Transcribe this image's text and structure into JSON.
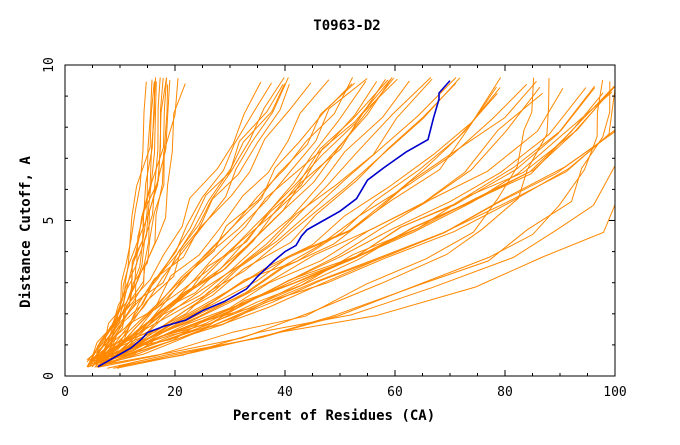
{
  "chart_data": {
    "type": "line",
    "title": "T0963-D2",
    "xlabel": "Percent of Residues (CA)",
    "ylabel": "Distance Cutoff, A",
    "xlim": [
      0,
      100
    ],
    "ylim": [
      0,
      10
    ],
    "x_ticks": [
      0,
      20,
      40,
      60,
      80,
      100
    ],
    "y_ticks": [
      0,
      5,
      10
    ],
    "colors": {
      "highlight": "#0000cc",
      "others": "#ff8800",
      "axis": "#000000"
    },
    "highlight_series": {
      "x": [
        6,
        9,
        12,
        14,
        15,
        18,
        22,
        25,
        29,
        33,
        35,
        38,
        40,
        42,
        43,
        44,
        47,
        50,
        53,
        55,
        58,
        62,
        66,
        67,
        68,
        68,
        70
      ],
      "y": [
        0.3,
        0.6,
        0.9,
        1.2,
        1.4,
        1.6,
        1.8,
        2.1,
        2.4,
        2.8,
        3.2,
        3.7,
        4.0,
        4.2,
        4.5,
        4.7,
        5.0,
        5.3,
        5.7,
        6.3,
        6.7,
        7.2,
        7.6,
        8.3,
        8.9,
        9.1,
        9.5
      ]
    },
    "curve_families": [
      {
        "name": "left bundle",
        "count": 14,
        "x": [
          5,
          7,
          9,
          11,
          12,
          13,
          14,
          15,
          16,
          17,
          17,
          17
        ],
        "y": [
          0.4,
          1.0,
          1.6,
          2.3,
          3.0,
          3.6,
          4.4,
          5.2,
          6.2,
          7.3,
          8.5,
          9.5
        ],
        "spread": 4.5
      },
      {
        "name": "middle-left bundle",
        "count": 14,
        "x": [
          6,
          9,
          12,
          16,
          20,
          24,
          28,
          32,
          36,
          40,
          44,
          48
        ],
        "y": [
          0.4,
          1.0,
          1.6,
          2.3,
          3.1,
          3.9,
          4.8,
          5.7,
          6.6,
          7.5,
          8.5,
          9.5
        ],
        "spread": 10
      },
      {
        "name": "middle bundle",
        "count": 16,
        "x": [
          6,
          10,
          15,
          20,
          26,
          32,
          38,
          44,
          50,
          56,
          62,
          68
        ],
        "y": [
          0.4,
          0.9,
          1.4,
          2.0,
          2.7,
          3.5,
          4.3,
          5.2,
          6.2,
          7.2,
          8.3,
          9.5
        ],
        "spread": 12
      },
      {
        "name": "right bundle",
        "count": 18,
        "x": [
          6,
          12,
          18,
          25,
          33,
          42,
          52,
          62,
          72,
          82,
          90,
          97
        ],
        "y": [
          0.4,
          0.8,
          1.2,
          1.7,
          2.3,
          3.0,
          3.8,
          4.7,
          5.6,
          6.6,
          7.8,
          9.2
        ],
        "spread": 10
      },
      {
        "name": "far right bundle",
        "count": 6,
        "x": [
          8,
          20,
          35,
          50,
          65,
          78,
          86,
          92,
          96,
          99,
          99,
          100
        ],
        "y": [
          0.3,
          0.7,
          1.3,
          2.0,
          2.9,
          3.8,
          4.6,
          5.6,
          6.7,
          7.8,
          8.6,
          9.5
        ],
        "spread": 5
      }
    ]
  }
}
